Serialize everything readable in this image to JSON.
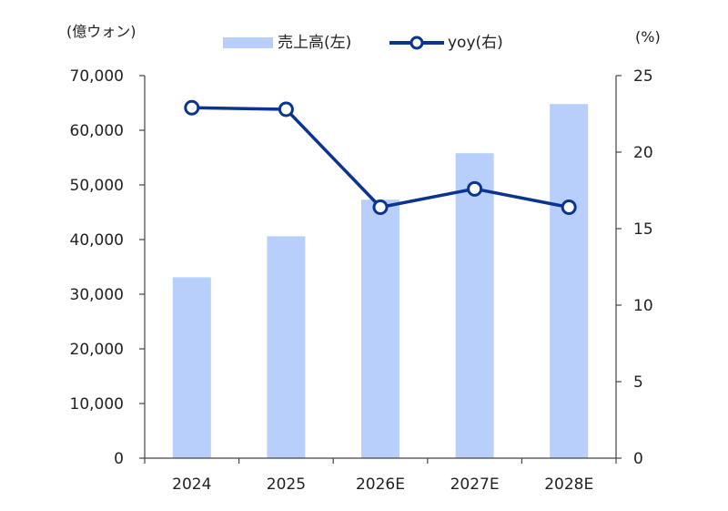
{
  "chart_data": {
    "type": "bar",
    "categories": [
      "2024",
      "2025",
      "2026E",
      "2027E",
      "2028E"
    ],
    "series": [
      {
        "name": "売上高(左)",
        "type": "bar",
        "axis": "left",
        "values": [
          33100,
          40600,
          47300,
          55800,
          64800
        ],
        "color": "#b8cffb"
      },
      {
        "name": "yoy(右)",
        "type": "line",
        "axis": "right",
        "values": [
          22.9,
          22.8,
          16.4,
          17.6,
          16.4
        ],
        "color": "#0a3491"
      }
    ],
    "y_left": {
      "unit_label": "(億ウォン)",
      "range": [
        0,
        70000
      ],
      "ticks": [
        0,
        10000,
        20000,
        30000,
        40000,
        50000,
        60000,
        70000
      ],
      "tick_labels": [
        "0",
        "10,000",
        "20,000",
        "30,000",
        "40,000",
        "50,000",
        "60,000",
        "70,000"
      ]
    },
    "y_right": {
      "unit_label": "(%)",
      "range": [
        0,
        25
      ],
      "ticks": [
        0,
        5,
        10,
        15,
        20,
        25
      ],
      "tick_labels": [
        "0",
        "5",
        "10",
        "15",
        "20",
        "25"
      ]
    },
    "legend_position": "top-center",
    "grid": false
  }
}
